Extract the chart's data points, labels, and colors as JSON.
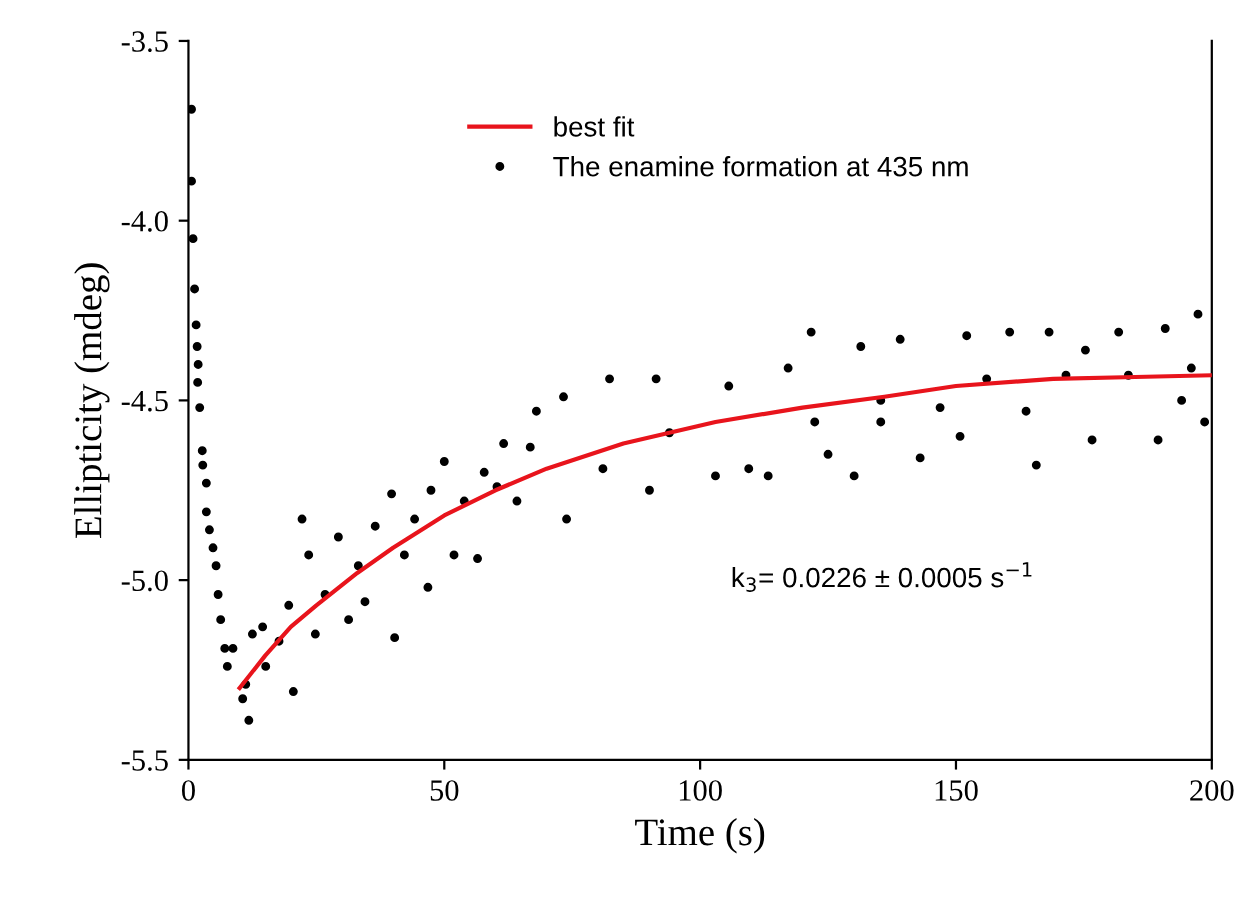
{
  "chart_data": {
    "type": "scatter",
    "xlabel": "Time (s)",
    "ylabel": "Ellipticity (mdeg)",
    "xlim": [
      0,
      200
    ],
    "xticks": [
      0,
      50,
      100,
      150,
      200
    ],
    "ylim": [
      -5.5,
      -3.5
    ],
    "yticks": [
      {
        "value": -5.5,
        "label": "-5.5"
      },
      {
        "value": -5.0,
        "label": "-5.0"
      },
      {
        "value": -4.5,
        "label": "-4.5"
      },
      {
        "value": -4.0,
        "label": "-4.0"
      },
      {
        "value": -3.5,
        "label": "-3.5"
      }
    ],
    "grid": false,
    "legend": "top",
    "marker": "circle",
    "annotations": [
      "k$_{3}$= 0.0226 ± 0.0005 s$^{−1}$"
    ],
    "series": [
      {
        "name": "best fit",
        "type": "line",
        "color": "#e8141c",
        "marker": "none",
        "x": [
          10,
          15,
          20,
          25,
          33,
          40,
          50,
          60,
          70,
          85,
          103,
          120,
          136,
          150,
          169,
          185,
          200
        ],
        "values": [
          -5.3,
          -5.21,
          -5.13,
          -5.07,
          -4.98,
          -4.91,
          -4.82,
          -4.75,
          -4.69,
          -4.62,
          -4.56,
          -4.52,
          -4.49,
          -4.46,
          -4.44,
          -4.435,
          -4.43
        ]
      },
      {
        "name": "The enamine formation at 435 nm",
        "color": "#000000",
        "x": [
          0.6,
          0.6,
          0.9,
          1.2,
          1.5,
          1.7,
          1.9,
          1.8,
          2.2,
          2.7,
          2.8,
          3.5,
          3.5,
          4.1,
          4.8,
          5.4,
          5.8,
          6.3,
          7.1,
          7.6,
          8.7,
          10.6,
          11.8,
          11.2,
          12.5,
          14.5,
          15.1,
          17.7,
          20.5,
          19.6,
          22.2,
          23.5,
          24.8,
          26.7,
          29.3,
          31.3,
          33.2,
          34.5,
          36.5,
          39.7,
          40.3,
          42.2,
          44.2,
          46.8,
          47.4,
          50,
          51.9,
          53.9,
          56.5,
          57.8,
          60.3,
          61.6,
          64.2,
          68,
          66.8,
          73.3,
          73.9,
          81,
          82.3,
          90.1,
          91.4,
          94,
          103,
          105.6,
          109.5,
          113.3,
          117.2,
          121.7,
          122.4,
          125,
          130.1,
          131.4,
          135.3,
          135.3,
          139.1,
          143,
          146.9,
          152.1,
          150.8,
          156,
          160.5,
          165.7,
          163.7,
          168.2,
          171.5,
          176.6,
          175.3,
          181.8,
          183.7,
          189.5,
          190.9,
          194.1,
          197.3,
          198.6,
          196
        ],
        "values": [
          -3.69,
          -3.89,
          -4.05,
          -4.19,
          -4.29,
          -4.35,
          -4.4,
          -4.45,
          -4.52,
          -4.64,
          -4.68,
          -4.73,
          -4.81,
          -4.86,
          -4.91,
          -4.96,
          -5.04,
          -5.11,
          -5.19,
          -5.24,
          -5.19,
          -5.33,
          -5.39,
          -5.29,
          -5.15,
          -5.13,
          -5.24,
          -5.17,
          -5.31,
          -5.07,
          -4.83,
          -4.93,
          -5.15,
          -5.04,
          -4.88,
          -5.11,
          -4.96,
          -5.06,
          -4.85,
          -4.76,
          -5.16,
          -4.93,
          -4.83,
          -5.02,
          -4.75,
          -4.67,
          -4.93,
          -4.78,
          -4.94,
          -4.7,
          -4.74,
          -4.62,
          -4.78,
          -4.53,
          -4.63,
          -4.49,
          -4.83,
          -4.69,
          -4.44,
          -4.75,
          -4.44,
          -4.59,
          -4.71,
          -4.46,
          -4.69,
          -4.71,
          -4.41,
          -4.31,
          -4.56,
          -4.65,
          -4.71,
          -4.35,
          -4.5,
          -4.56,
          -4.33,
          -4.66,
          -4.52,
          -4.32,
          -4.6,
          -4.44,
          -4.31,
          -4.68,
          -4.53,
          -4.31,
          -4.43,
          -4.61,
          -4.36,
          -4.31,
          -4.43,
          -4.61,
          -4.3,
          -4.5,
          -4.26,
          -4.56,
          -4.41
        ]
      }
    ]
  }
}
